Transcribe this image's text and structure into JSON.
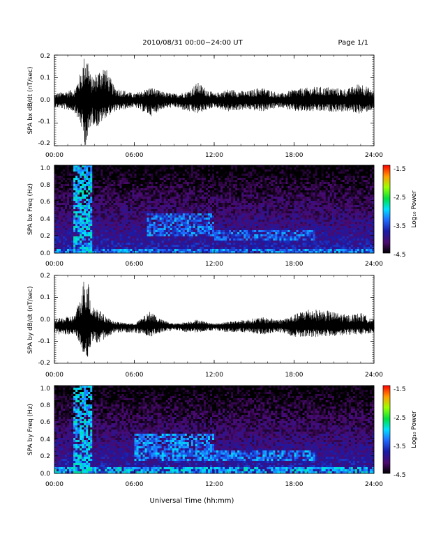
{
  "header": {
    "title": "2010/08/31  00:00−24:00 UT",
    "page": "Page 1/1"
  },
  "footer": {
    "xlabel": "Universal Time (hh:mm)"
  },
  "chart_data": [
    {
      "type": "line",
      "ylabel": "SPA bx dB/dt (nT/sec)",
      "ylim": [
        -0.2,
        0.2
      ],
      "yticks": [
        "-0.2",
        "-0.1",
        "0.0",
        "0.1",
        "0.2"
      ],
      "xlim": [
        "00:00",
        "24:00"
      ],
      "xticks": [
        "00:00",
        "06:00",
        "12:00",
        "18:00",
        "24:00"
      ],
      "series": [
        {
          "x": [
            "00:00",
            "01:30",
            "02:00",
            "02:15",
            "02:30",
            "02:45",
            "03:15",
            "03:45",
            "04:30",
            "06:00",
            "07:15",
            "08:00",
            "09:00",
            "10:00",
            "10:45",
            "12:00",
            "13:00",
            "14:30",
            "15:30",
            "17:00",
            "18:00",
            "19:30",
            "20:30",
            "22:00",
            "23:00",
            "24:00"
          ],
          "max": [
            0.03,
            0.05,
            0.13,
            0.2,
            0.2,
            0.1,
            0.13,
            0.16,
            0.06,
            0.03,
            0.06,
            0.04,
            0.03,
            0.04,
            0.08,
            0.03,
            0.05,
            0.04,
            0.06,
            0.03,
            0.05,
            0.06,
            0.06,
            0.05,
            0.08,
            0.04
          ],
          "min": [
            -0.03,
            -0.05,
            -0.12,
            -0.2,
            -0.2,
            -0.1,
            -0.12,
            -0.08,
            -0.05,
            -0.03,
            -0.07,
            -0.04,
            -0.03,
            -0.05,
            -0.06,
            -0.03,
            -0.05,
            -0.04,
            -0.05,
            -0.03,
            -0.05,
            -0.05,
            -0.05,
            -0.05,
            -0.06,
            -0.04
          ],
          "mean": 0.0
        }
      ]
    },
    {
      "type": "heatmap",
      "ylabel": "SPA bx Freq (Hz)",
      "ylim": [
        0.0,
        1.0
      ],
      "yticks": [
        "0.0",
        "0.2",
        "0.4",
        "0.6",
        "0.8",
        "1.0"
      ],
      "xlim": [
        "00:00",
        "24:00"
      ],
      "xticks": [
        "00:00",
        "06:00",
        "12:00",
        "18:00",
        "24:00"
      ],
      "colorbar": {
        "label": "Log₁₀ Power",
        "range": [
          -4.5,
          -1.5
        ],
        "ticks": [
          "-1.5",
          "-2.5",
          "-3.5",
          "-4.5"
        ]
      },
      "features": [
        {
          "time_hours": [
            1.5,
            2.8
          ],
          "freq_hz": [
            0.0,
            1.0
          ],
          "log_power": -3.0
        },
        {
          "time_hours": [
            7.0,
            12.0
          ],
          "freq_hz": [
            0.2,
            0.45
          ],
          "log_power": -3.3
        },
        {
          "time_hours": [
            12.0,
            19.5
          ],
          "freq_hz": [
            0.15,
            0.25
          ],
          "log_power": -3.3
        },
        {
          "time_hours": [
            0.0,
            24.0
          ],
          "freq_hz": [
            0.0,
            0.05
          ],
          "log_power": -3.2
        }
      ]
    },
    {
      "type": "line",
      "ylabel": "SPA by dB/dt (nT/sec)",
      "ylim": [
        -0.2,
        0.2
      ],
      "yticks": [
        "-0.2",
        "-0.1",
        "0.0",
        "0.1",
        "0.2"
      ],
      "xlim": [
        "00:00",
        "24:00"
      ],
      "xticks": [
        "00:00",
        "06:00",
        "12:00",
        "18:00",
        "24:00"
      ],
      "series": [
        {
          "x": [
            "00:00",
            "01:30",
            "02:00",
            "02:15",
            "02:30",
            "02:45",
            "03:15",
            "03:45",
            "04:30",
            "06:00",
            "07:15",
            "08:00",
            "09:00",
            "10:00",
            "10:45",
            "12:00",
            "13:00",
            "14:30",
            "15:30",
            "17:00",
            "18:00",
            "19:00",
            "20:30",
            "22:00",
            "23:00",
            "24:00"
          ],
          "max": [
            0.0,
            0.02,
            0.11,
            0.2,
            0.2,
            0.08,
            0.05,
            0.02,
            -0.01,
            -0.02,
            0.04,
            0.0,
            -0.02,
            -0.01,
            0.0,
            -0.02,
            -0.01,
            0.0,
            0.01,
            0.0,
            0.02,
            0.05,
            0.04,
            0.02,
            0.03,
            0.0
          ],
          "min": [
            -0.07,
            -0.07,
            -0.12,
            -0.19,
            -0.2,
            -0.1,
            -0.12,
            -0.09,
            -0.06,
            -0.06,
            -0.08,
            -0.06,
            -0.05,
            -0.06,
            -0.06,
            -0.05,
            -0.06,
            -0.06,
            -0.07,
            -0.06,
            -0.08,
            -0.08,
            -0.08,
            -0.07,
            -0.07,
            -0.06
          ],
          "mean": -0.03
        }
      ]
    },
    {
      "type": "heatmap",
      "ylabel": "SPA by Freq (Hz)",
      "ylim": [
        0.0,
        1.0
      ],
      "yticks": [
        "0.0",
        "0.2",
        "0.4",
        "0.6",
        "0.8",
        "1.0"
      ],
      "xlim": [
        "00:00",
        "24:00"
      ],
      "xticks": [
        "00:00",
        "06:00",
        "12:00",
        "18:00",
        "24:00"
      ],
      "colorbar": {
        "label": "Log₁₀ Power",
        "range": [
          -4.5,
          -1.5
        ],
        "ticks": [
          "-1.5",
          "-2.5",
          "-3.5",
          "-4.5"
        ]
      },
      "features": [
        {
          "time_hours": [
            1.5,
            2.8
          ],
          "freq_hz": [
            0.0,
            1.0
          ],
          "log_power": -3.0
        },
        {
          "time_hours": [
            6.0,
            12.0
          ],
          "freq_hz": [
            0.15,
            0.45
          ],
          "log_power": -3.2
        },
        {
          "time_hours": [
            12.0,
            19.5
          ],
          "freq_hz": [
            0.15,
            0.25
          ],
          "log_power": -3.2
        },
        {
          "time_hours": [
            0.0,
            24.0
          ],
          "freq_hz": [
            0.0,
            0.07
          ],
          "log_power": -3.0
        }
      ]
    }
  ]
}
